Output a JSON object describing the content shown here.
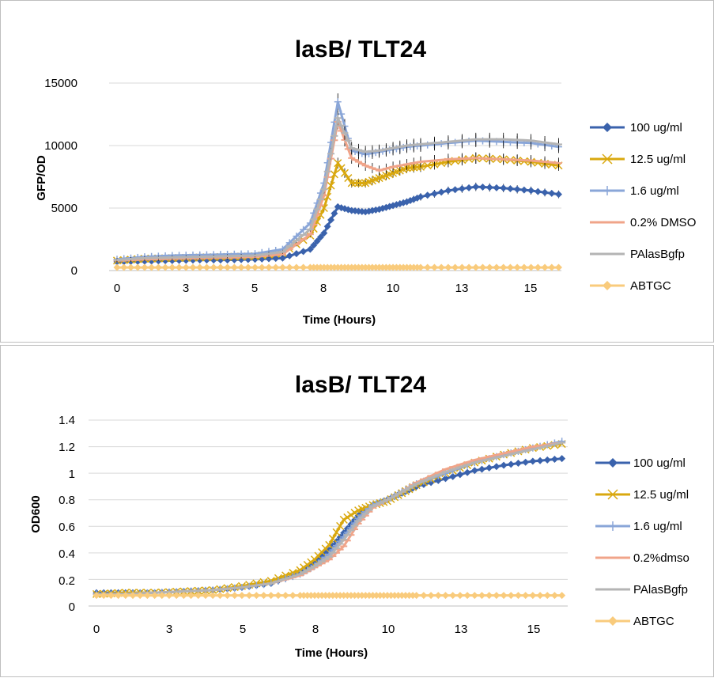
{
  "charts": [
    {
      "title": "lasB/ TLT24",
      "xlabel": "Time (Hours)",
      "ylabel": "GFP/OD",
      "yticks": [
        "0",
        "5000",
        "10000",
        "15000"
      ],
      "xticks": [
        "0",
        "3",
        "5",
        "8",
        "10",
        "13",
        "15"
      ]
    },
    {
      "title": "lasB/ TLT24",
      "xlabel": "Time (Hours)",
      "ylabel": "OD600",
      "yticks": [
        "0",
        "0.2",
        "0.4",
        "0.6",
        "0.8",
        "1",
        "1.2",
        "1.4"
      ],
      "xticks": [
        "0",
        "3",
        "5",
        "8",
        "10",
        "13",
        "15"
      ]
    }
  ],
  "chart_data": [
    {
      "type": "line",
      "title": "lasB/ TLT24",
      "xlabel": "Time (Hours)",
      "ylabel": "GFP/OD",
      "ylim": [
        0,
        15000
      ],
      "grid": true,
      "legend": "right",
      "x": [
        0,
        1,
        2,
        3,
        4,
        5,
        6,
        7,
        7.5,
        8,
        8.5,
        9,
        9.5,
        10,
        10.5,
        11,
        12,
        13,
        14,
        15,
        16
      ],
      "series": [
        {
          "name": "100 ug/ml",
          "color": "#3a62ac",
          "marker": "diamond",
          "values": [
            700,
            750,
            800,
            850,
            850,
            900,
            1000,
            1700,
            3000,
            5100,
            4800,
            4700,
            4900,
            5200,
            5500,
            5900,
            6400,
            6700,
            6600,
            6400,
            6100
          ]
        },
        {
          "name": "12.5 ug/ml",
          "color": "#d9a80f",
          "marker": "x",
          "values": [
            800,
            950,
            1000,
            1050,
            1100,
            1150,
            1400,
            2800,
            5000,
            8600,
            7000,
            7000,
            7400,
            7800,
            8200,
            8300,
            8700,
            9000,
            8900,
            8700,
            8400
          ]
        },
        {
          "name": "1.6 ug/ml",
          "color": "#8aa6d8",
          "marker": "plus",
          "values": [
            900,
            1100,
            1200,
            1250,
            1300,
            1350,
            1700,
            3800,
            7000,
            13500,
            9600,
            9300,
            9500,
            9700,
            9900,
            10000,
            10200,
            10400,
            10300,
            10200,
            9900
          ]
        },
        {
          "name": "0.2% DMSO",
          "color": "#f0a489",
          "marker": "dash",
          "values": [
            800,
            900,
            950,
            1000,
            1050,
            1100,
            1300,
            2900,
            6000,
            11900,
            9000,
            8400,
            8000,
            8300,
            8500,
            8700,
            8900,
            9000,
            8900,
            8800,
            8600
          ]
        },
        {
          "name": "PAlasBgfp",
          "color": "#b4b4b4",
          "marker": "dash",
          "values": [
            850,
            1000,
            1050,
            1100,
            1150,
            1200,
            1500,
            3300,
            6500,
            12200,
            9800,
            9500,
            9600,
            9800,
            10000,
            10100,
            10300,
            10500,
            10500,
            10400,
            10100
          ]
        },
        {
          "name": "ABTGC",
          "color": "#f9cb7c",
          "marker": "diamond",
          "values": [
            250,
            250,
            250,
            250,
            250,
            250,
            250,
            250,
            250,
            250,
            250,
            250,
            250,
            250,
            250,
            250,
            250,
            250,
            250,
            250,
            250
          ]
        }
      ]
    },
    {
      "type": "line",
      "title": "lasB/ TLT24",
      "xlabel": "Time (Hours)",
      "ylabel": "OD600",
      "ylim": [
        0,
        1.4
      ],
      "grid": true,
      "legend": "right",
      "x": [
        0,
        1,
        2,
        3,
        4,
        5,
        6,
        7,
        7.5,
        8,
        8.5,
        9,
        9.5,
        10,
        10.5,
        11,
        12,
        13,
        14,
        15,
        16
      ],
      "series": [
        {
          "name": "100 ug/ml",
          "color": "#3a62ac",
          "marker": "diamond",
          "values": [
            0.1,
            0.1,
            0.1,
            0.11,
            0.12,
            0.14,
            0.17,
            0.25,
            0.32,
            0.42,
            0.55,
            0.68,
            0.76,
            0.8,
            0.85,
            0.9,
            0.96,
            1.02,
            1.06,
            1.09,
            1.11
          ]
        },
        {
          "name": "12.5 ug/ml",
          "color": "#d9a80f",
          "marker": "x",
          "values": [
            0.09,
            0.1,
            0.1,
            0.11,
            0.12,
            0.15,
            0.19,
            0.27,
            0.35,
            0.46,
            0.65,
            0.72,
            0.76,
            0.79,
            0.85,
            0.91,
            1.0,
            1.08,
            1.14,
            1.19,
            1.22
          ]
        },
        {
          "name": "1.6 ug/ml",
          "color": "#8aa6d8",
          "marker": "plus",
          "values": [
            0.09,
            0.09,
            0.1,
            0.11,
            0.12,
            0.14,
            0.17,
            0.24,
            0.3,
            0.39,
            0.52,
            0.66,
            0.76,
            0.8,
            0.86,
            0.92,
            1.0,
            1.08,
            1.14,
            1.19,
            1.24
          ]
        },
        {
          "name": "0.2%dmso",
          "color": "#f0a489",
          "marker": "dash",
          "values": [
            0.09,
            0.09,
            0.1,
            0.11,
            0.12,
            0.14,
            0.17,
            0.23,
            0.29,
            0.35,
            0.45,
            0.62,
            0.74,
            0.8,
            0.86,
            0.93,
            1.03,
            1.1,
            1.15,
            1.2,
            1.23
          ]
        },
        {
          "name": "PAlasBgfp",
          "color": "#b4b4b4",
          "marker": "dash",
          "values": [
            0.09,
            0.09,
            0.1,
            0.11,
            0.12,
            0.14,
            0.17,
            0.24,
            0.3,
            0.37,
            0.5,
            0.64,
            0.75,
            0.8,
            0.86,
            0.92,
            1.01,
            1.08,
            1.13,
            1.18,
            1.23
          ]
        },
        {
          "name": "ABTGC",
          "color": "#f9cb7c",
          "marker": "diamond",
          "values": [
            0.08,
            0.08,
            0.08,
            0.08,
            0.08,
            0.08,
            0.08,
            0.08,
            0.08,
            0.08,
            0.08,
            0.08,
            0.08,
            0.08,
            0.08,
            0.08,
            0.08,
            0.08,
            0.08,
            0.08,
            0.08
          ]
        }
      ]
    }
  ]
}
